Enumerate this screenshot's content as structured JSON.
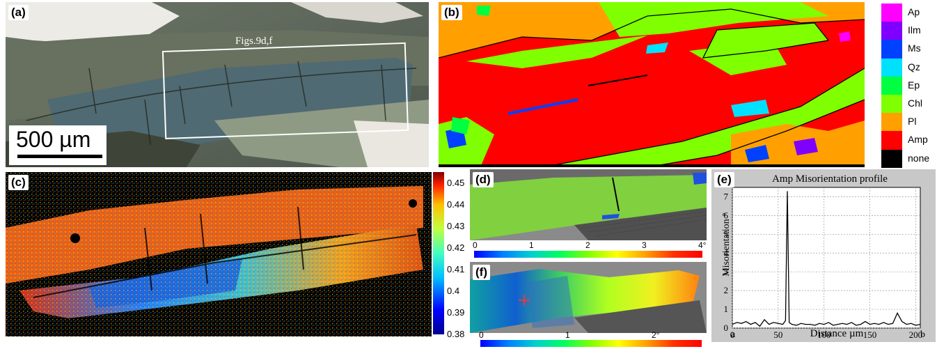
{
  "panels": {
    "a": {
      "label": "(a)",
      "scale_bar": "500 µm",
      "inset_label": "Figs.9d,f"
    },
    "b": {
      "label": "(b)"
    },
    "c": {
      "label": "(c)"
    },
    "d": {
      "label": "(d)"
    },
    "e": {
      "label": "(e)"
    },
    "f": {
      "label": "(f)"
    }
  },
  "phase_legend": [
    {
      "name": "Ap",
      "color": "#ff00ff"
    },
    {
      "name": "Ilm",
      "color": "#8000ff"
    },
    {
      "name": "Ms",
      "color": "#0040ff"
    },
    {
      "name": "Qz",
      "color": "#00e0ff"
    },
    {
      "name": "Ep",
      "color": "#00ff40"
    },
    {
      "name": "Chl",
      "color": "#80ff00"
    },
    {
      "name": "Pl",
      "color": "#ffa000"
    },
    {
      "name": "Amp",
      "color": "#ff0000"
    },
    {
      "name": "none",
      "color": "#000000"
    }
  ],
  "colorbar_c": {
    "ticks": [
      "0.45",
      "0.44",
      "0.43",
      "0.42",
      "0.41",
      "0.4",
      "0.39",
      "0.38"
    ],
    "min": 0.38,
    "max": 0.455
  },
  "scale_d": {
    "ticks": [
      "0",
      "1",
      "2",
      "3",
      "4°"
    ]
  },
  "scale_f": {
    "ticks": [
      "0",
      "1",
      "2°"
    ]
  },
  "chart_data": {
    "type": "line",
    "title": "Amp Misorientation profile",
    "xlabel": "Distance µm",
    "ylabel": "Misorientation °",
    "xlim": [
      0,
      205
    ],
    "ylim": [
      0,
      7.5
    ],
    "xticks": [
      0,
      50,
      100,
      150,
      200
    ],
    "yticks": [
      0,
      1,
      2,
      3,
      4,
      5,
      6,
      7
    ],
    "grid": true,
    "start_label": "a",
    "end_label": "b",
    "x": [
      0,
      5,
      10,
      15,
      20,
      25,
      30,
      35,
      40,
      45,
      50,
      55,
      58,
      60,
      62,
      65,
      70,
      75,
      80,
      85,
      90,
      95,
      100,
      105,
      110,
      115,
      120,
      125,
      130,
      135,
      140,
      145,
      150,
      155,
      160,
      165,
      170,
      175,
      180,
      185,
      190,
      195,
      200,
      205
    ],
    "y": [
      0.2,
      0.3,
      0.25,
      0.35,
      0.2,
      0.3,
      0.1,
      0.45,
      0.2,
      0.3,
      0.25,
      0.2,
      0.4,
      7.3,
      0.3,
      0.2,
      0.15,
      0.25,
      0.2,
      0.2,
      0.15,
      0.25,
      0.2,
      0.3,
      0.15,
      0.2,
      0.25,
      0.2,
      0.3,
      0.15,
      0.2,
      0.35,
      0.2,
      0.25,
      0.2,
      0.3,
      0.2,
      0.25,
      0.8,
      0.35,
      0.2,
      0.25,
      0.15,
      0.2
    ]
  }
}
